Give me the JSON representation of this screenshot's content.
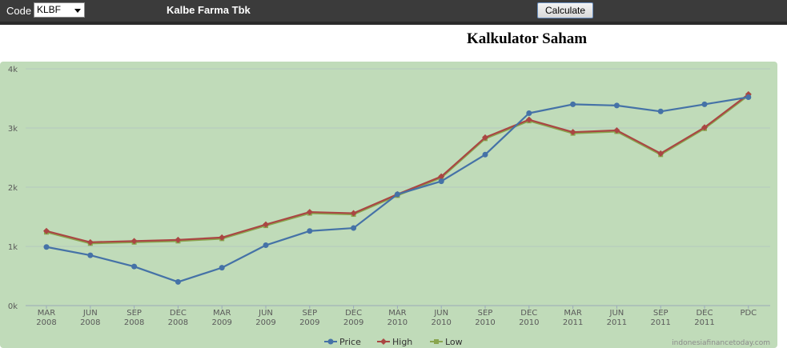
{
  "toolbar": {
    "code_label": "Code",
    "code_value": "KLBF",
    "company_name": "Kalbe Farma Tbk",
    "calculate_label": "Calculate"
  },
  "page_title": "Kalkulator Saham",
  "credit": "indonesiafinancetoday.com",
  "chart_data": {
    "type": "line",
    "title": "Kalkulator Saham",
    "xlabel": "",
    "ylabel": "",
    "ylim": [
      0,
      4000
    ],
    "grid": true,
    "legend_position": "bottom-center",
    "y_ticks": [
      "0k",
      "1k",
      "2k",
      "3k",
      "4k"
    ],
    "y_tick_values": [
      0,
      1000,
      2000,
      3000,
      4000
    ],
    "categories": [
      [
        "MAR",
        "2008"
      ],
      [
        "JUN",
        "2008"
      ],
      [
        "SEP",
        "2008"
      ],
      [
        "DEC",
        "2008"
      ],
      [
        "MAR",
        "2009"
      ],
      [
        "JUN",
        "2009"
      ],
      [
        "SEP",
        "2009"
      ],
      [
        "DEC",
        "2009"
      ],
      [
        "MAR",
        "2010"
      ],
      [
        "JUN",
        "2010"
      ],
      [
        "SEP",
        "2010"
      ],
      [
        "DEC",
        "2010"
      ],
      [
        "MAR",
        "2011"
      ],
      [
        "JUN",
        "2011"
      ],
      [
        "SEP",
        "2011"
      ],
      [
        "DEC",
        "2011"
      ],
      [
        "PDC",
        ""
      ]
    ],
    "series": [
      {
        "name": "Price",
        "color": "#4572a7",
        "marker": "circle",
        "values": [
          990,
          850,
          660,
          400,
          640,
          1020,
          1260,
          1310,
          1880,
          2100,
          2550,
          3250,
          3400,
          3380,
          3280,
          3400,
          3520
        ]
      },
      {
        "name": "High",
        "color": "#aa4643",
        "marker": "diamond",
        "values": [
          1260,
          1070,
          1090,
          1110,
          1150,
          1370,
          1580,
          1560,
          1880,
          2180,
          2840,
          3140,
          2930,
          2960,
          2570,
          3010,
          3570
        ]
      },
      {
        "name": "Low",
        "color": "#89a54e",
        "marker": "square",
        "values": [
          1240,
          1050,
          1070,
          1090,
          1130,
          1350,
          1560,
          1540,
          1860,
          2160,
          2820,
          3120,
          2910,
          2940,
          2550,
          2990,
          3550
        ]
      }
    ]
  }
}
